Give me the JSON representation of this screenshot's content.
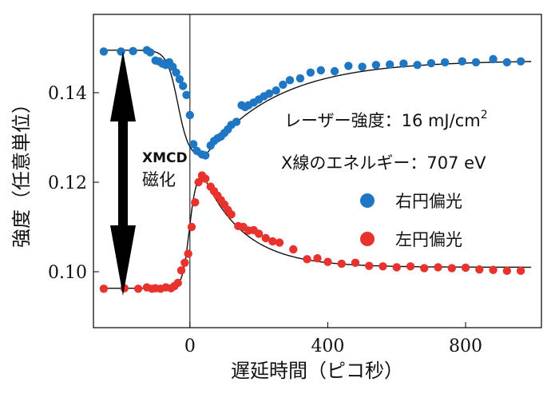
{
  "chart_data": {
    "type": "scatter",
    "title": "",
    "xlabel": "遅延時間（ピコ秒）",
    "ylabel": "強度（任意単位）",
    "xlim": [
      -280,
      1020
    ],
    "ylim": [
      0.0875,
      0.1575
    ],
    "xticks": [
      0,
      400,
      800
    ],
    "yticks": [
      0.1,
      0.12,
      0.14
    ],
    "ytick_labels": [
      "0.10",
      "0.12",
      "0.14"
    ],
    "annotations": {
      "laser_prefix": "レーザー強度：16 mJ/cm",
      "laser_sup": "2",
      "xray": "X線のエネルギー：707 eV",
      "xmcd": "XMCD",
      "magnetization": "磁化"
    },
    "series": [
      {
        "name": "右円偏光",
        "color": "#1f77c4",
        "points": [
          [
            -250,
            0.1492
          ],
          [
            -200,
            0.1492
          ],
          [
            -165,
            0.1493
          ],
          [
            -125,
            0.1495
          ],
          [
            -115,
            0.149
          ],
          [
            -100,
            0.1472
          ],
          [
            -90,
            0.147
          ],
          [
            -80,
            0.1465
          ],
          [
            -70,
            0.1462
          ],
          [
            -60,
            0.1468
          ],
          [
            -50,
            0.1458
          ],
          [
            -40,
            0.1445
          ],
          [
            -30,
            0.143
          ],
          [
            -20,
            0.1415
          ],
          [
            -10,
            0.1395
          ],
          [
            0,
            0.135
          ],
          [
            10,
            0.1285
          ],
          [
            20,
            0.127
          ],
          [
            35,
            0.1262
          ],
          [
            45,
            0.126
          ],
          [
            60,
            0.1282
          ],
          [
            70,
            0.1292
          ],
          [
            80,
            0.1298
          ],
          [
            90,
            0.1302
          ],
          [
            100,
            0.131
          ],
          [
            110,
            0.1318
          ],
          [
            120,
            0.1328
          ],
          [
            135,
            0.1335
          ],
          [
            150,
            0.1372
          ],
          [
            160,
            0.1368
          ],
          [
            170,
            0.1372
          ],
          [
            185,
            0.1378
          ],
          [
            200,
            0.1385
          ],
          [
            215,
            0.1392
          ],
          [
            230,
            0.1398
          ],
          [
            250,
            0.1405
          ],
          [
            270,
            0.1418
          ],
          [
            290,
            0.1428
          ],
          [
            320,
            0.1432
          ],
          [
            350,
            0.1445
          ],
          [
            380,
            0.145
          ],
          [
            420,
            0.1448
          ],
          [
            460,
            0.146
          ],
          [
            500,
            0.1458
          ],
          [
            540,
            0.1462
          ],
          [
            580,
            0.1463
          ],
          [
            620,
            0.1465
          ],
          [
            660,
            0.1462
          ],
          [
            700,
            0.1466
          ],
          [
            740,
            0.1468
          ],
          [
            790,
            0.147
          ],
          [
            830,
            0.1468
          ],
          [
            880,
            0.1475
          ],
          [
            920,
            0.1468
          ],
          [
            960,
            0.147
          ]
        ]
      },
      {
        "name": "左円偏光",
        "color": "#e8322d",
        "points": [
          [
            -250,
            0.0962
          ],
          [
            -190,
            0.0963
          ],
          [
            -150,
            0.0962
          ],
          [
            -125,
            0.0965
          ],
          [
            -110,
            0.0962
          ],
          [
            -100,
            0.0963
          ],
          [
            -85,
            0.0962
          ],
          [
            -70,
            0.0965
          ],
          [
            -55,
            0.0963
          ],
          [
            -45,
            0.0968
          ],
          [
            -35,
            0.0975
          ],
          [
            -25,
            0.1003
          ],
          [
            -15,
            0.102
          ],
          [
            -5,
            0.104
          ],
          [
            5,
            0.11
          ],
          [
            15,
            0.1155
          ],
          [
            25,
            0.12
          ],
          [
            35,
            0.1215
          ],
          [
            45,
            0.1208
          ],
          [
            60,
            0.119
          ],
          [
            70,
            0.118
          ],
          [
            80,
            0.117
          ],
          [
            90,
            0.116
          ],
          [
            100,
            0.115
          ],
          [
            110,
            0.1138
          ],
          [
            120,
            0.1128
          ],
          [
            140,
            0.1102
          ],
          [
            155,
            0.11
          ],
          [
            170,
            0.1092
          ],
          [
            185,
            0.1093
          ],
          [
            200,
            0.1085
          ],
          [
            220,
            0.1075
          ],
          [
            240,
            0.1068
          ],
          [
            260,
            0.1065
          ],
          [
            300,
            0.105
          ],
          [
            340,
            0.1028
          ],
          [
            370,
            0.103
          ],
          [
            400,
            0.1022
          ],
          [
            440,
            0.1018
          ],
          [
            480,
            0.102
          ],
          [
            520,
            0.1013
          ],
          [
            560,
            0.1012
          ],
          [
            600,
            0.101
          ],
          [
            640,
            0.1012
          ],
          [
            680,
            0.1008
          ],
          [
            720,
            0.101
          ],
          [
            760,
            0.1008
          ],
          [
            800,
            0.1009
          ],
          [
            840,
            0.1005
          ],
          [
            880,
            0.1004
          ],
          [
            920,
            0.1002
          ],
          [
            960,
            0.1002
          ]
        ]
      }
    ],
    "fit_curves": {
      "right": {
        "baseline": 0.1495,
        "minimum": 0.1255,
        "drop_center": -35,
        "drop_width": 16,
        "t_min": 42,
        "recovery_tau": 210,
        "plateau": 0.1472
      },
      "left": {
        "baseline": 0.0963,
        "maximum": 0.1222,
        "rise_center": -2,
        "rise_width": 10,
        "t_max": 38,
        "decay_tau": 120,
        "plateau": 0.101
      }
    },
    "zero_line_x": 0
  }
}
